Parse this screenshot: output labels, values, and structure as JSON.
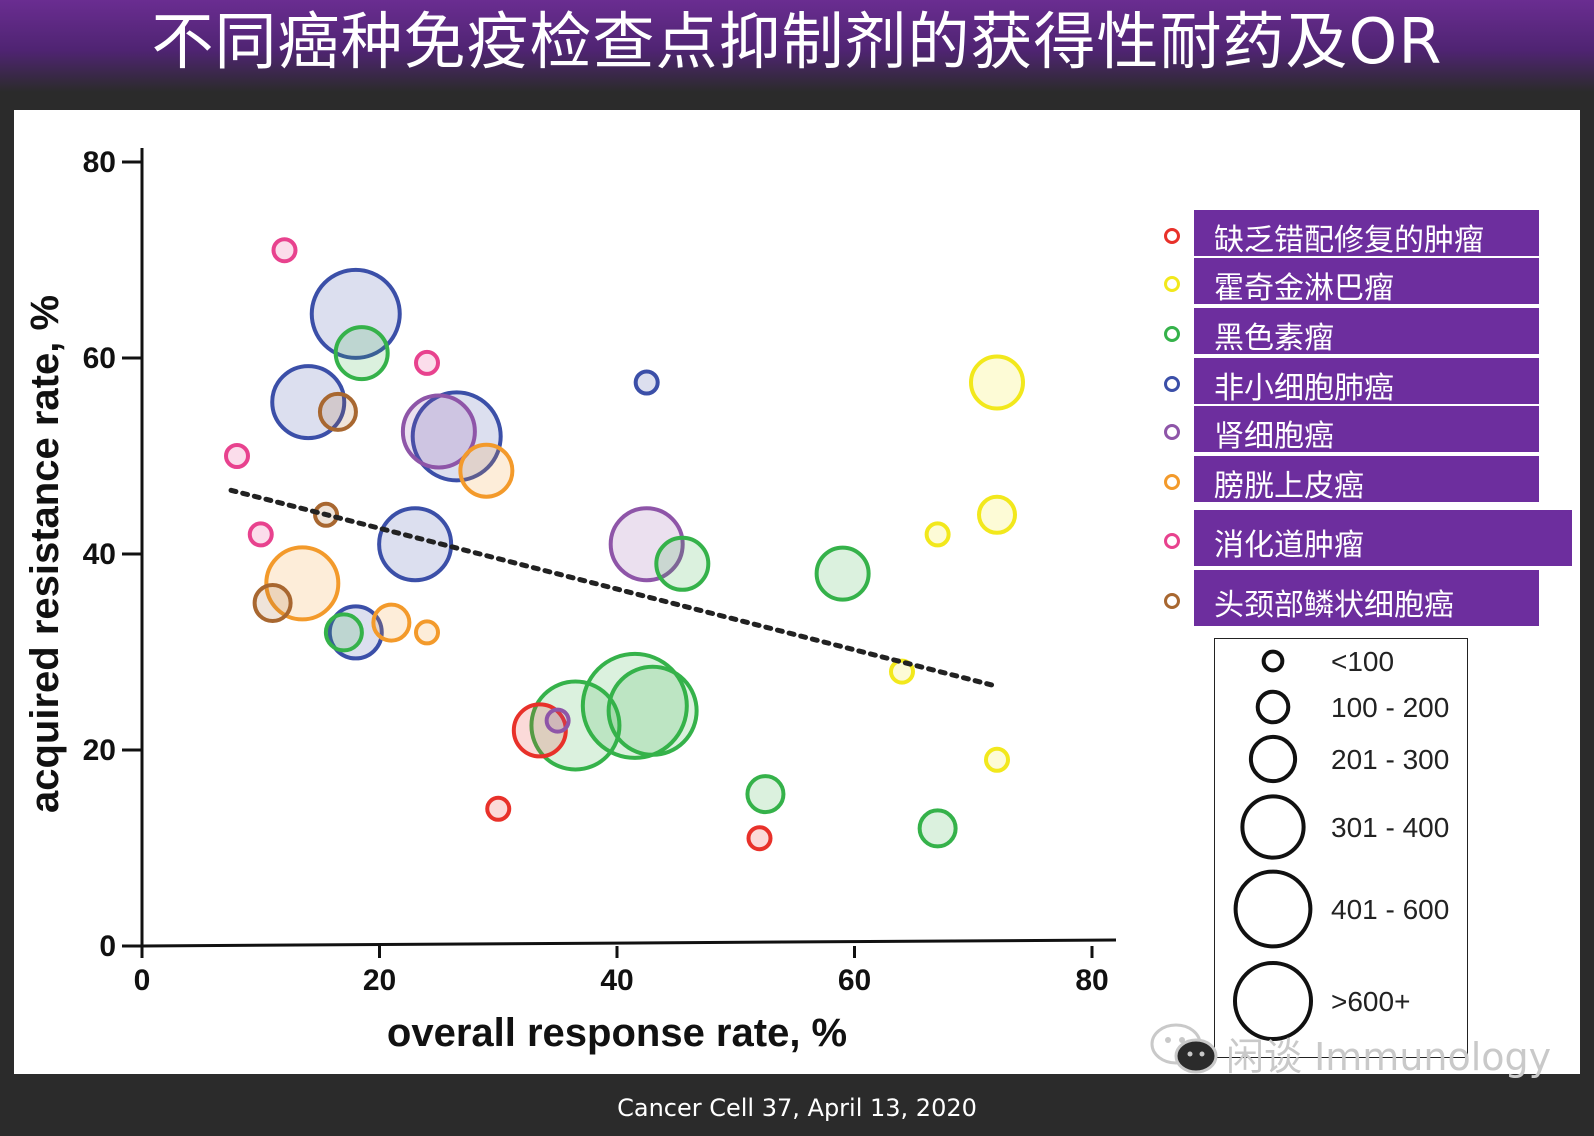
{
  "title": "不同癌种免疫检查点抑制剂的获得性耐药及OR",
  "footer": "Cancer Cell 37, April 13, 2020",
  "watermark": "闲谈 Immunology",
  "colors": {
    "dMMR": "#e8312a",
    "hodgkin": "#f2e81c",
    "melanoma": "#35b24a",
    "nsclc": "#3b4fa8",
    "rcc": "#8e55a8",
    "urothelial": "#f39a2b",
    "gi": "#e8428e",
    "hnscc": "#a86730",
    "legend_bg": "#6d2e9e"
  },
  "legend_categories": [
    {
      "key": "dMMR",
      "label": "缺乏错配修复的肿瘤",
      "color": "#e8312a"
    },
    {
      "key": "hodgkin",
      "label": "霍奇金淋巴瘤",
      "color": "#f2e81c"
    },
    {
      "key": "melanoma",
      "label": "黑色素瘤",
      "color": "#35b24a"
    },
    {
      "key": "nsclc",
      "label": "非小细胞肺癌",
      "color": "#3b4fa8"
    },
    {
      "key": "rcc",
      "label": "肾细胞癌",
      "color": "#8e55a8"
    },
    {
      "key": "urothelial",
      "label": "膀胱上皮癌",
      "color": "#f39a2b"
    },
    {
      "key": "gi",
      "label": "消化道肿瘤",
      "color": "#e8428e"
    },
    {
      "key": "hnscc",
      "label": "头颈部鳞状细胞癌",
      "color": "#a86730"
    }
  ],
  "legend_sizes": [
    {
      "label": "<100",
      "size_class": 1
    },
    {
      "label": "100 - 200",
      "size_class": 2
    },
    {
      "label": "201 - 300",
      "size_class": 3
    },
    {
      "label": "301 - 400",
      "size_class": 4
    },
    {
      "label": "401 - 600",
      "size_class": 5
    },
    {
      "label": ">600+",
      "size_class": 6
    }
  ],
  "chart_data": {
    "type": "scatter",
    "title": "",
    "xlabel": "overall response rate, %",
    "ylabel": "acquired resistance rate, %",
    "xlim": [
      0,
      80
    ],
    "ylim": [
      0,
      80
    ],
    "x_ticks": [
      "0",
      "20",
      "40",
      "60",
      "80"
    ],
    "y_ticks": [
      "0",
      "20",
      "40",
      "60",
      "80"
    ],
    "size_encoding": "number of patients",
    "trendline": {
      "style": "dotted",
      "x": [
        7.5,
        72
      ],
      "y": [
        46.5,
        26.5
      ]
    },
    "series": [
      {
        "name": "缺乏错配修复的肿瘤",
        "key": "dMMR",
        "points": [
          {
            "x": 33.5,
            "y": 22,
            "size_class": 3
          },
          {
            "x": 30,
            "y": 14,
            "size_class": 1
          },
          {
            "x": 52,
            "y": 11,
            "size_class": 1
          }
        ]
      },
      {
        "name": "霍奇金淋巴瘤",
        "key": "hodgkin",
        "points": [
          {
            "x": 72,
            "y": 57.5,
            "size_class": 3
          },
          {
            "x": 72,
            "y": 44,
            "size_class": 2
          },
          {
            "x": 67,
            "y": 42,
            "size_class": 1
          },
          {
            "x": 64,
            "y": 28,
            "size_class": 1
          },
          {
            "x": 72,
            "y": 19,
            "size_class": 1
          }
        ]
      },
      {
        "name": "黑色素瘤",
        "key": "melanoma",
        "points": [
          {
            "x": 18.5,
            "y": 60.5,
            "size_class": 3
          },
          {
            "x": 45.5,
            "y": 39,
            "size_class": 3
          },
          {
            "x": 59,
            "y": 38,
            "size_class": 3
          },
          {
            "x": 17,
            "y": 32,
            "size_class": 2
          },
          {
            "x": 36.5,
            "y": 22.5,
            "size_class": 5
          },
          {
            "x": 41.5,
            "y": 24.5,
            "size_class": 6
          },
          {
            "x": 43,
            "y": 24,
            "size_class": 5
          },
          {
            "x": 52.5,
            "y": 15.5,
            "size_class": 2
          },
          {
            "x": 67,
            "y": 12,
            "size_class": 2
          }
        ]
      },
      {
        "name": "非小细胞肺癌",
        "key": "nsclc",
        "points": [
          {
            "x": 18,
            "y": 64.5,
            "size_class": 5
          },
          {
            "x": 14,
            "y": 55.5,
            "size_class": 4
          },
          {
            "x": 26.5,
            "y": 52,
            "size_class": 5
          },
          {
            "x": 23,
            "y": 41,
            "size_class": 4
          },
          {
            "x": 18,
            "y": 32,
            "size_class": 3
          },
          {
            "x": 42.5,
            "y": 57.5,
            "size_class": 1
          }
        ]
      },
      {
        "name": "肾细胞癌",
        "key": "rcc",
        "points": [
          {
            "x": 25,
            "y": 52.5,
            "size_class": 4
          },
          {
            "x": 42.5,
            "y": 41,
            "size_class": 4
          },
          {
            "x": 35,
            "y": 23,
            "size_class": 1
          }
        ]
      },
      {
        "name": "膀胱上皮癌",
        "key": "urothelial",
        "points": [
          {
            "x": 29,
            "y": 48.5,
            "size_class": 3
          },
          {
            "x": 13.5,
            "y": 37,
            "size_class": 4
          },
          {
            "x": 21,
            "y": 33,
            "size_class": 2
          },
          {
            "x": 24,
            "y": 32,
            "size_class": 1
          }
        ]
      },
      {
        "name": "消化道肿瘤",
        "key": "gi",
        "points": [
          {
            "x": 12,
            "y": 71,
            "size_class": 1
          },
          {
            "x": 24,
            "y": 59.5,
            "size_class": 1
          },
          {
            "x": 8,
            "y": 50,
            "size_class": 1
          },
          {
            "x": 10,
            "y": 42,
            "size_class": 1
          }
        ]
      },
      {
        "name": "头颈部鳞状细胞癌",
        "key": "hnscc",
        "points": [
          {
            "x": 16.5,
            "y": 54.5,
            "size_class": 2
          },
          {
            "x": 15.5,
            "y": 44,
            "size_class": 1
          },
          {
            "x": 11,
            "y": 35,
            "size_class": 2
          }
        ]
      }
    ]
  }
}
